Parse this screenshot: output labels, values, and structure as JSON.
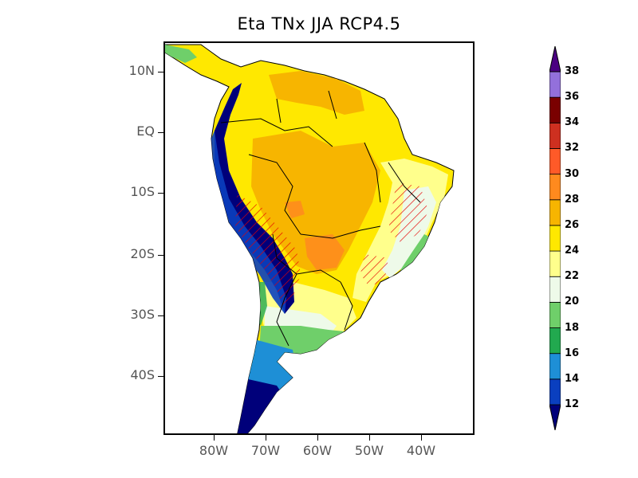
{
  "title": "Eta TNx JJA RCP4.5",
  "lat_labels": [
    "10N",
    "EQ",
    "10S",
    "20S",
    "30S",
    "40S"
  ],
  "lon_labels": [
    "80W",
    "70W",
    "60W",
    "50W",
    "40W"
  ],
  "colorbar": {
    "levels": [
      "12",
      "14",
      "16",
      "18",
      "20",
      "22",
      "24",
      "26",
      "28",
      "30",
      "32",
      "34",
      "36",
      "38"
    ],
    "colors": [
      "#00007a",
      "#0a3fbf",
      "#1e8fd6",
      "#22a94f",
      "#6fcf6a",
      "#eefae9",
      "#ffff8c",
      "#ffe800",
      "#f7b500",
      "#ff8a1e",
      "#ff5a28",
      "#cd3020",
      "#7a0000",
      "#9370db",
      "#4b0082"
    ]
  },
  "colors": {
    "hatch": "#e60000",
    "border": "#000000"
  }
}
